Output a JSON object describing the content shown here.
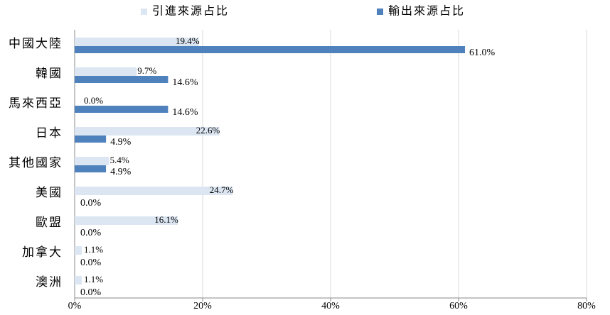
{
  "chart_data": {
    "type": "hbar",
    "categories": [
      "中國大陸",
      "韓國",
      "馬來西亞",
      "日本",
      "其他國家",
      "美國",
      "歐盟",
      "加拿大",
      "澳洲"
    ],
    "series": [
      {
        "name": "引進來源占比",
        "color": "#dce6f2",
        "values": [
          19.4,
          9.7,
          0.0,
          22.6,
          5.4,
          24.7,
          16.1,
          1.1,
          1.1
        ],
        "value_labels": [
          "19.4%",
          "9.7%",
          "0.0%",
          "22.6%",
          "5.4%",
          "24.7%",
          "16.1%",
          "1.1%",
          "1.1%"
        ]
      },
      {
        "name": "輸出來源占比",
        "color": "#4f81bd",
        "values": [
          61.0,
          14.6,
          14.6,
          4.9,
          4.9,
          0.0,
          0.0,
          0.0,
          0.0
        ],
        "value_labels": [
          "61.0%",
          "14.6%",
          "14.6%",
          "4.9%",
          "4.9%",
          "0.0%",
          "0.0%",
          "0.0%",
          "0.0%"
        ]
      }
    ],
    "xlim": [
      0,
      80
    ],
    "xticks": [
      {
        "value": 0,
        "label": "0%"
      },
      {
        "value": 20,
        "label": "20%"
      },
      {
        "value": 40,
        "label": "40%"
      },
      {
        "value": 60,
        "label": "60%"
      },
      {
        "value": 80,
        "label": "80%"
      }
    ],
    "grid": true
  }
}
